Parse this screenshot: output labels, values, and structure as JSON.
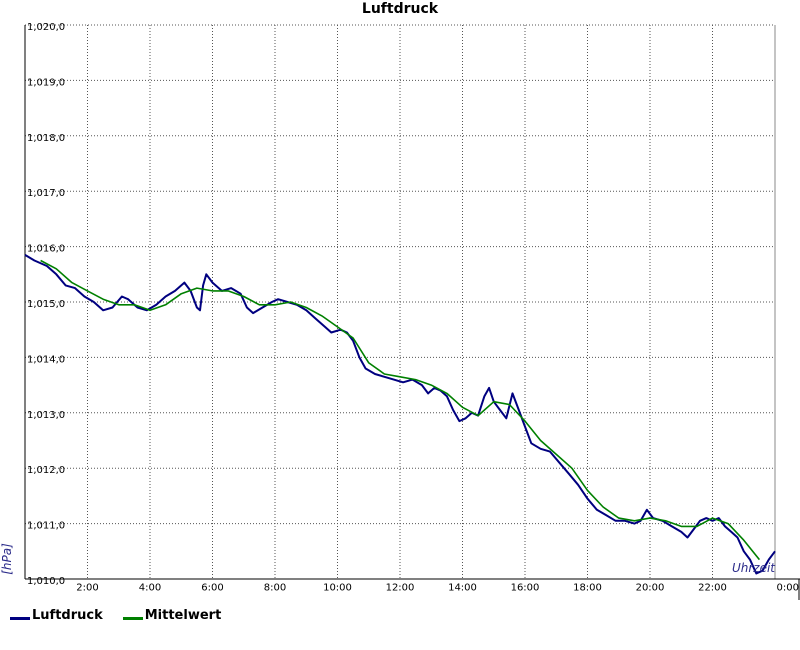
{
  "chart_data": {
    "type": "line",
    "title": "Luftdruck",
    "ylabel": "[hPa]",
    "xlabel": "Uhrzeit",
    "ylim": [
      1010.0,
      1020.0
    ],
    "xlim": [
      0,
      24
    ],
    "y_ticks": [
      {
        "value": 1010,
        "label": "1,010,0"
      },
      {
        "value": 1011,
        "label": "1,011,0"
      },
      {
        "value": 1012,
        "label": "1,012,0"
      },
      {
        "value": 1013,
        "label": "1,013,0"
      },
      {
        "value": 1014,
        "label": "1,014,0"
      },
      {
        "value": 1015,
        "label": "1,015,0"
      },
      {
        "value": 1016,
        "label": "1,016,0"
      },
      {
        "value": 1017,
        "label": "1,017,0"
      },
      {
        "value": 1018,
        "label": "1,018,0"
      },
      {
        "value": 1019,
        "label": "1,019,0"
      },
      {
        "value": 1020,
        "label": "1,020,0"
      }
    ],
    "x_ticks": [
      {
        "value": 2,
        "label": "2:00"
      },
      {
        "value": 4,
        "label": "4:00"
      },
      {
        "value": 6,
        "label": "6:00"
      },
      {
        "value": 8,
        "label": "8:00"
      },
      {
        "value": 10,
        "label": "10:00"
      },
      {
        "value": 12,
        "label": "12:00"
      },
      {
        "value": 14,
        "label": "14:00"
      },
      {
        "value": 16,
        "label": "16:00"
      },
      {
        "value": 18,
        "label": "18:00"
      },
      {
        "value": 20,
        "label": "20:00"
      },
      {
        "value": 22,
        "label": "22:00"
      },
      {
        "value": 24,
        "label": "0:00"
      }
    ],
    "grid": true,
    "legend_position": "bottom-left",
    "series": [
      {
        "name": "Luftdruck",
        "color": "#000080",
        "points": [
          [
            0,
            1015.85
          ],
          [
            0.3,
            1015.75
          ],
          [
            0.7,
            1015.65
          ],
          [
            1.0,
            1015.5
          ],
          [
            1.3,
            1015.3
          ],
          [
            1.6,
            1015.25
          ],
          [
            1.9,
            1015.1
          ],
          [
            2.2,
            1015.0
          ],
          [
            2.5,
            1014.85
          ],
          [
            2.8,
            1014.9
          ],
          [
            3.1,
            1015.1
          ],
          [
            3.3,
            1015.05
          ],
          [
            3.6,
            1014.9
          ],
          [
            3.9,
            1014.85
          ],
          [
            4.2,
            1014.95
          ],
          [
            4.5,
            1015.1
          ],
          [
            4.8,
            1015.2
          ],
          [
            5.1,
            1015.35
          ],
          [
            5.3,
            1015.2
          ],
          [
            5.5,
            1014.9
          ],
          [
            5.6,
            1014.85
          ],
          [
            5.7,
            1015.3
          ],
          [
            5.8,
            1015.5
          ],
          [
            6.0,
            1015.35
          ],
          [
            6.3,
            1015.2
          ],
          [
            6.6,
            1015.25
          ],
          [
            6.9,
            1015.15
          ],
          [
            7.1,
            1014.9
          ],
          [
            7.3,
            1014.8
          ],
          [
            7.6,
            1014.9
          ],
          [
            7.9,
            1015.0
          ],
          [
            8.1,
            1015.05
          ],
          [
            8.4,
            1015.0
          ],
          [
            8.7,
            1014.95
          ],
          [
            9.0,
            1014.85
          ],
          [
            9.3,
            1014.7
          ],
          [
            9.6,
            1014.55
          ],
          [
            9.8,
            1014.45
          ],
          [
            10.1,
            1014.5
          ],
          [
            10.3,
            1014.45
          ],
          [
            10.5,
            1014.3
          ],
          [
            10.7,
            1014.0
          ],
          [
            10.9,
            1013.8
          ],
          [
            11.2,
            1013.7
          ],
          [
            11.5,
            1013.65
          ],
          [
            11.8,
            1013.6
          ],
          [
            12.1,
            1013.55
          ],
          [
            12.4,
            1013.6
          ],
          [
            12.7,
            1013.5
          ],
          [
            12.9,
            1013.35
          ],
          [
            13.1,
            1013.45
          ],
          [
            13.3,
            1013.4
          ],
          [
            13.5,
            1013.3
          ],
          [
            13.7,
            1013.05
          ],
          [
            13.9,
            1012.85
          ],
          [
            14.1,
            1012.9
          ],
          [
            14.3,
            1013.0
          ],
          [
            14.5,
            1012.95
          ],
          [
            14.7,
            1013.3
          ],
          [
            14.85,
            1013.45
          ],
          [
            15.0,
            1013.2
          ],
          [
            15.2,
            1013.05
          ],
          [
            15.4,
            1012.9
          ],
          [
            15.6,
            1013.35
          ],
          [
            15.8,
            1013.05
          ],
          [
            16.0,
            1012.75
          ],
          [
            16.2,
            1012.45
          ],
          [
            16.5,
            1012.35
          ],
          [
            16.8,
            1012.3
          ],
          [
            17.1,
            1012.1
          ],
          [
            17.4,
            1011.9
          ],
          [
            17.7,
            1011.7
          ],
          [
            18.0,
            1011.45
          ],
          [
            18.3,
            1011.25
          ],
          [
            18.6,
            1011.15
          ],
          [
            18.9,
            1011.05
          ],
          [
            19.2,
            1011.05
          ],
          [
            19.5,
            1011.0
          ],
          [
            19.7,
            1011.05
          ],
          [
            19.9,
            1011.25
          ],
          [
            20.1,
            1011.1
          ],
          [
            20.4,
            1011.05
          ],
          [
            20.7,
            1010.95
          ],
          [
            21.0,
            1010.85
          ],
          [
            21.2,
            1010.75
          ],
          [
            21.4,
            1010.9
          ],
          [
            21.6,
            1011.05
          ],
          [
            21.8,
            1011.1
          ],
          [
            22.0,
            1011.05
          ],
          [
            22.2,
            1011.1
          ],
          [
            22.4,
            1010.95
          ],
          [
            22.6,
            1010.85
          ],
          [
            22.8,
            1010.75
          ],
          [
            23.0,
            1010.5
          ],
          [
            23.2,
            1010.35
          ],
          [
            23.4,
            1010.1
          ],
          [
            23.6,
            1010.15
          ],
          [
            23.8,
            1010.35
          ],
          [
            24.0,
            1010.5
          ]
        ]
      },
      {
        "name": "Mittelwert",
        "color": "#008000",
        "points": [
          [
            0.5,
            1015.75
          ],
          [
            1.0,
            1015.6
          ],
          [
            1.5,
            1015.35
          ],
          [
            2.0,
            1015.2
          ],
          [
            2.5,
            1015.05
          ],
          [
            3.0,
            1014.95
          ],
          [
            3.5,
            1014.95
          ],
          [
            4.0,
            1014.85
          ],
          [
            4.5,
            1014.95
          ],
          [
            5.0,
            1015.15
          ],
          [
            5.5,
            1015.25
          ],
          [
            6.0,
            1015.2
          ],
          [
            6.5,
            1015.2
          ],
          [
            7.0,
            1015.1
          ],
          [
            7.5,
            1014.95
          ],
          [
            8.0,
            1014.95
          ],
          [
            8.5,
            1015.0
          ],
          [
            9.0,
            1014.9
          ],
          [
            9.5,
            1014.75
          ],
          [
            10.0,
            1014.55
          ],
          [
            10.5,
            1014.35
          ],
          [
            11.0,
            1013.9
          ],
          [
            11.5,
            1013.7
          ],
          [
            12.0,
            1013.65
          ],
          [
            12.5,
            1013.6
          ],
          [
            13.0,
            1013.5
          ],
          [
            13.5,
            1013.35
          ],
          [
            14.0,
            1013.1
          ],
          [
            14.5,
            1012.95
          ],
          [
            15.0,
            1013.2
          ],
          [
            15.5,
            1013.15
          ],
          [
            16.0,
            1012.85
          ],
          [
            16.5,
            1012.5
          ],
          [
            17.0,
            1012.25
          ],
          [
            17.5,
            1012.0
          ],
          [
            18.0,
            1011.6
          ],
          [
            18.5,
            1011.3
          ],
          [
            19.0,
            1011.1
          ],
          [
            19.5,
            1011.05
          ],
          [
            20.0,
            1011.1
          ],
          [
            20.5,
            1011.05
          ],
          [
            21.0,
            1010.95
          ],
          [
            21.5,
            1010.95
          ],
          [
            22.0,
            1011.1
          ],
          [
            22.5,
            1011.0
          ],
          [
            23.0,
            1010.7
          ],
          [
            23.5,
            1010.35
          ]
        ]
      }
    ]
  }
}
